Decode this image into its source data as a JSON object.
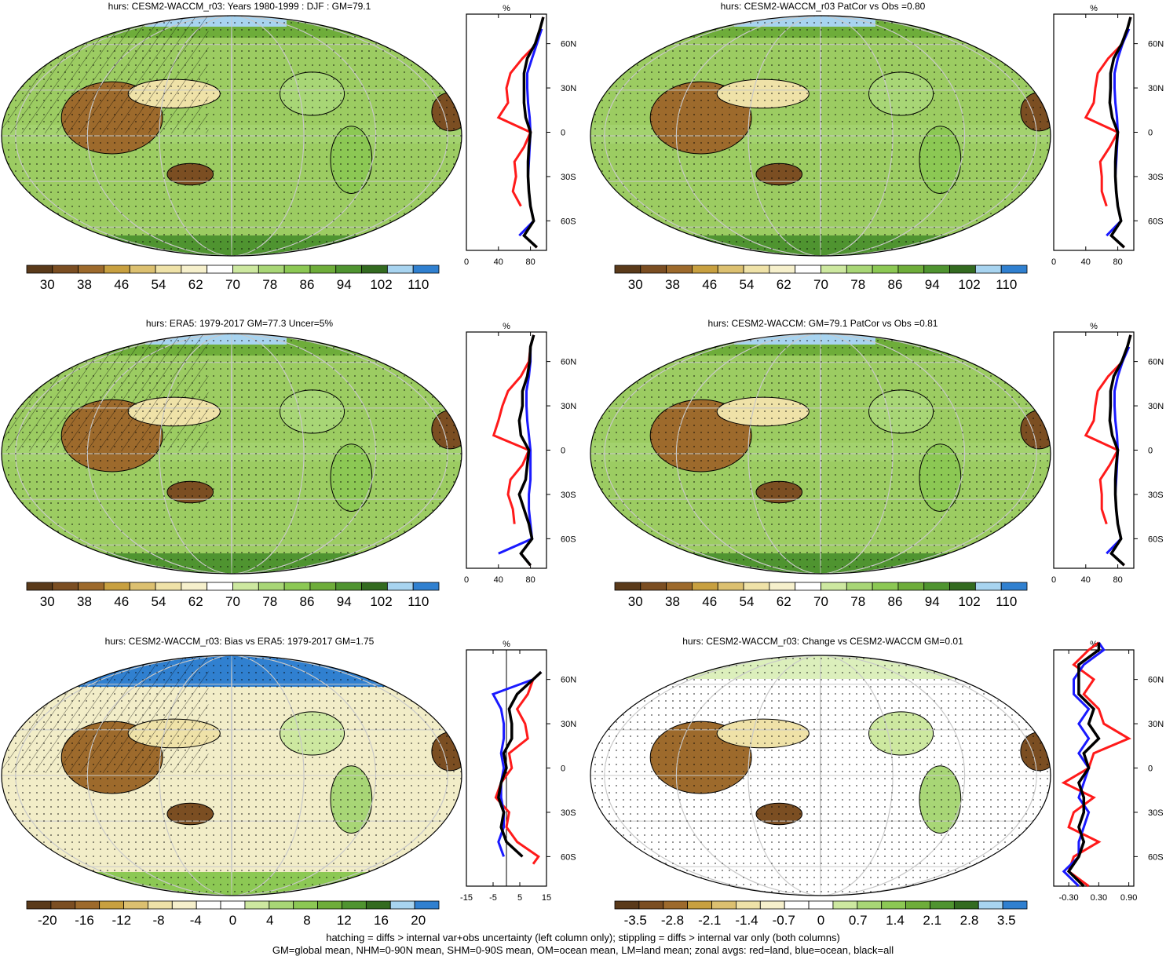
{
  "footer": {
    "line1": "hatching = diffs > internal var+obs uncertainty (left column only); stippling = diffs > internal var only (both columns)",
    "line2": "GM=global mean, NHM=0-90N mean, SHM=0-90S mean, OM=ocean mean, LM=land mean; zonal avgs: red=land, blue=ocean, black=all"
  },
  "colors": {
    "land": "#ff1a1a",
    "ocean": "#1a1aff",
    "all": "#000000"
  },
  "chart_data": [
    {
      "id": "p1",
      "type": "heatmap",
      "title": "hurs: CESM2-WACCM_r03: Years 1980-1999 : DJF : GM=79.1",
      "colorbar": {
        "ticks": [
          "30",
          "38",
          "46",
          "54",
          "62",
          "70",
          "78",
          "86",
          "94",
          "102",
          "110"
        ]
      },
      "profile": {
        "type": "line",
        "xlabel": "%",
        "xticks": [
          "0",
          "40",
          "80"
        ],
        "xlim": [
          0,
          100
        ],
        "lat_ticks": [
          "60N",
          "30N",
          "0",
          "30S",
          "60S"
        ],
        "lat": [
          78,
          70,
          60,
          50,
          40,
          30,
          20,
          10,
          0,
          -10,
          -20,
          -30,
          -40,
          -50,
          -60,
          -70,
          -78
        ],
        "series": [
          {
            "name": "land",
            "values": [
              96,
              92,
              88,
              70,
              55,
              50,
              52,
              40,
              80,
              72,
              60,
              62,
              58,
              68,
              null,
              72,
              88
            ]
          },
          {
            "name": "ocean",
            "values": [
              null,
              94,
              88,
              82,
              76,
              76,
              77,
              79,
              80,
              79,
              78,
              77,
              78,
              80,
              84,
              66,
              null
            ]
          },
          {
            "name": "all",
            "values": [
              96,
              92,
              86,
              76,
              72,
              72,
              72,
              74,
              80,
              78,
              77,
              77,
              78,
              80,
              84,
              72,
              88
            ]
          }
        ]
      }
    },
    {
      "id": "p2",
      "type": "heatmap",
      "title": "hurs: CESM2-WACCM_r03 PatCor vs Obs =0.80",
      "colorbar": {
        "ticks": [
          "30",
          "38",
          "46",
          "54",
          "62",
          "70",
          "78",
          "86",
          "94",
          "102",
          "110"
        ]
      },
      "profile": {
        "type": "line",
        "xlabel": "%",
        "xticks": [
          "0",
          "40",
          "80"
        ],
        "xlim": [
          0,
          100
        ],
        "lat_ticks": [
          "60N",
          "30N",
          "0",
          "30S",
          "60S"
        ],
        "lat": [
          78,
          70,
          60,
          50,
          40,
          30,
          20,
          10,
          0,
          -10,
          -20,
          -30,
          -40,
          -50,
          -60,
          -70,
          -78
        ],
        "series": [
          {
            "name": "land",
            "values": [
              96,
              92,
              86,
              68,
              55,
              52,
              50,
              40,
              80,
              70,
              58,
              60,
              60,
              66,
              null,
              72,
              88
            ]
          },
          {
            "name": "ocean",
            "values": [
              null,
              94,
              86,
              80,
              76,
              76,
              77,
              79,
              80,
              79,
              78,
              77,
              78,
              80,
              84,
              66,
              null
            ]
          },
          {
            "name": "all",
            "values": [
              96,
              92,
              85,
              75,
              71,
              71,
              70,
              73,
              80,
              78,
              77,
              77,
              78,
              80,
              84,
              72,
              88
            ]
          }
        ]
      }
    },
    {
      "id": "p3",
      "type": "heatmap",
      "title": "hurs: ERA5: 1979-2017 GM=77.3 Uncer=5%",
      "colorbar": {
        "ticks": [
          "30",
          "38",
          "46",
          "54",
          "62",
          "70",
          "78",
          "86",
          "94",
          "102",
          "110"
        ]
      },
      "profile": {
        "type": "line",
        "xlabel": "%",
        "xticks": [
          "0",
          "40",
          "80"
        ],
        "xlim": [
          0,
          100
        ],
        "lat_ticks": [
          "60N",
          "30N",
          "0",
          "30S",
          "60S"
        ],
        "lat": [
          78,
          70,
          60,
          50,
          40,
          30,
          20,
          10,
          0,
          -10,
          -20,
          -30,
          -40,
          -50,
          -60,
          -70,
          -78
        ],
        "series": [
          {
            "name": "land",
            "values": [
              84,
              80,
              78,
              68,
              52,
              45,
              40,
              34,
              78,
              70,
              55,
              52,
              58,
              60,
              null,
              68,
              80
            ]
          },
          {
            "name": "ocean",
            "values": [
              null,
              80,
              80,
              78,
              75,
              75,
              76,
              78,
              80,
              80,
              80,
              78,
              78,
              80,
              82,
              40,
              null
            ]
          },
          {
            "name": "all",
            "values": [
              84,
              80,
              79,
              76,
              70,
              70,
              66,
              68,
              78,
              76,
              74,
              66,
              72,
              78,
              82,
              68,
              80
            ]
          }
        ]
      }
    },
    {
      "id": "p4",
      "type": "heatmap",
      "title": "hurs: CESM2-WACCM: GM=79.1 PatCor vs Obs =0.81",
      "colorbar": {
        "ticks": [
          "30",
          "38",
          "46",
          "54",
          "62",
          "70",
          "78",
          "86",
          "94",
          "102",
          "110"
        ]
      },
      "profile": {
        "type": "line",
        "xlabel": "%",
        "xticks": [
          "0",
          "40",
          "80"
        ],
        "xlim": [
          0,
          100
        ],
        "lat_ticks": [
          "60N",
          "30N",
          "0",
          "30S",
          "60S"
        ],
        "lat": [
          78,
          70,
          60,
          50,
          40,
          30,
          20,
          10,
          0,
          -10,
          -20,
          -30,
          -40,
          -50,
          -60,
          -70,
          -78
        ],
        "series": [
          {
            "name": "land",
            "values": [
              96,
              92,
              86,
              68,
              55,
              52,
              50,
              40,
              80,
              70,
              58,
              60,
              60,
              66,
              null,
              72,
              88
            ]
          },
          {
            "name": "ocean",
            "values": [
              null,
              94,
              86,
              80,
              76,
              76,
              77,
              79,
              80,
              79,
              78,
              77,
              78,
              80,
              84,
              66,
              null
            ]
          },
          {
            "name": "all",
            "values": [
              96,
              92,
              85,
              75,
              71,
              71,
              70,
              73,
              80,
              78,
              77,
              77,
              78,
              80,
              84,
              72,
              88
            ]
          }
        ]
      }
    },
    {
      "id": "p5",
      "type": "heatmap",
      "title": "hurs: CESM2-WACCM_r03: Bias vs ERA5: 1979-2017 GM=1.75",
      "colorbar": {
        "ticks": [
          "-20",
          "-16",
          "-12",
          "-8",
          "-4",
          "0",
          "4",
          "8",
          "12",
          "16",
          "20"
        ]
      },
      "profile": {
        "type": "line",
        "xlabel": "%",
        "xticks": [
          "-15",
          "-5",
          "5",
          "15"
        ],
        "xlim": [
          -15,
          15
        ],
        "lat_ticks": [
          "60N",
          "30N",
          "0",
          "30S",
          "60S"
        ],
        "lat": [
          65,
          60,
          50,
          40,
          30,
          20,
          10,
          0,
          -10,
          -20,
          -30,
          -40,
          -50,
          -60,
          -65
        ],
        "series": [
          {
            "name": "land",
            "values": [
              13,
              10,
              8,
              4,
              7,
              8,
              1,
              2,
              -2,
              -4,
              1,
              0,
              4,
              12,
              10
            ]
          },
          {
            "name": "ocean",
            "values": [
              13,
              10,
              -5,
              -2,
              -1,
              -1,
              -2,
              -1,
              -2,
              -2,
              -1,
              -1,
              -3,
              -1,
              null
            ]
          },
          {
            "name": "all",
            "values": [
              13,
              10,
              4,
              1,
              2,
              2,
              -1,
              0,
              -2,
              -3,
              -1,
              -2,
              0,
              6,
              null
            ]
          }
        ]
      }
    },
    {
      "id": "p6",
      "type": "heatmap",
      "title": "hurs: CESM2-WACCM_r03: Change vs CESM2-WACCM GM=0.01",
      "colorbar": {
        "ticks": [
          "-3.5",
          "-2.8",
          "-2.1",
          "-1.4",
          "-0.7",
          "0",
          "0.7",
          "1.4",
          "2.1",
          "2.8",
          "3.5"
        ]
      },
      "profile": {
        "type": "line",
        "xlabel": "%",
        "xticks": [
          "-0.30",
          "0.30",
          "0.90"
        ],
        "xlim": [
          -0.6,
          1.0
        ],
        "lat_ticks": [
          "60N",
          "30N",
          "0",
          "30S",
          "60S"
        ],
        "lat": [
          85,
          80,
          70,
          60,
          50,
          40,
          30,
          20,
          10,
          0,
          -10,
          -20,
          -30,
          -40,
          -50,
          -60,
          -70,
          -80
        ],
        "series": [
          {
            "name": "land",
            "values": [
              0.3,
              0.1,
              -0.2,
              0.2,
              0.0,
              0.3,
              0.4,
              0.9,
              0.2,
              0.1,
              -0.4,
              0.2,
              -0.2,
              -0.3,
              0.3,
              -0.2,
              -0.3,
              0.1
            ]
          },
          {
            "name": "ocean",
            "values": [
              0.3,
              0.4,
              0.0,
              -0.2,
              -0.2,
              0.1,
              -0.1,
              0.1,
              -0.1,
              0.1,
              0.0,
              -0.1,
              0.1,
              0.0,
              -0.1,
              -0.1,
              -0.4,
              -0.1
            ]
          },
          {
            "name": "all",
            "values": [
              0.3,
              0.3,
              -0.1,
              -0.1,
              -0.1,
              0.2,
              0.1,
              0.3,
              0.0,
              0.1,
              -0.1,
              0.0,
              0.0,
              -0.1,
              0.0,
              -0.1,
              -0.3,
              0.0
            ]
          }
        ]
      }
    }
  ]
}
